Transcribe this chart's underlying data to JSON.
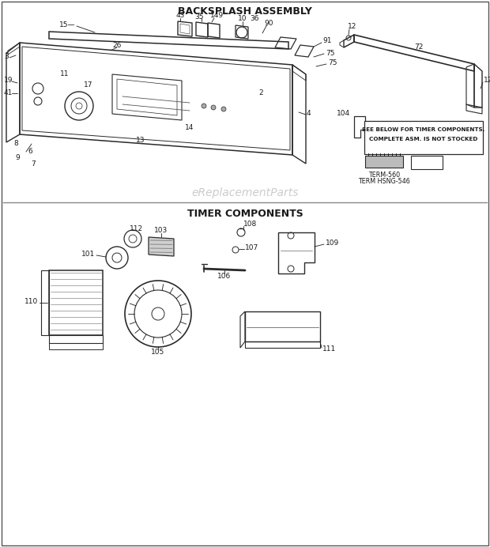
{
  "title_top": "BACKSPLASH ASSEMBLY",
  "title_bottom": "TIMER COMPONENTS",
  "watermark": "eReplacementParts",
  "background_color": "#ffffff",
  "font_color": "#1a1a1a"
}
